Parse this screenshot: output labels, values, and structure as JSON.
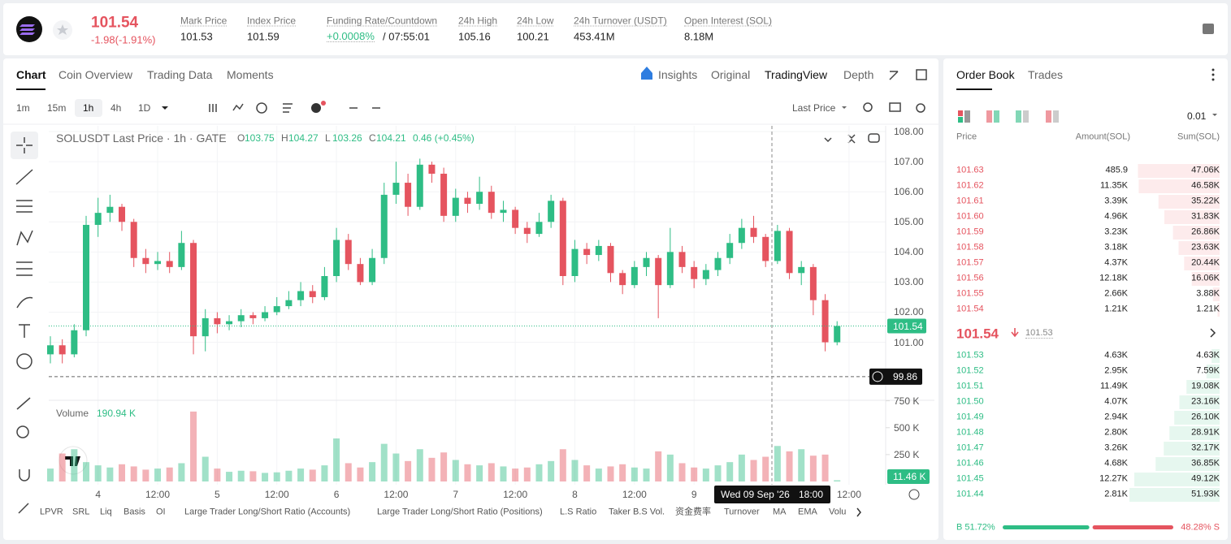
{
  "header": {
    "price": "101.54",
    "change": "-1.98(-1.91%)",
    "stats": [
      {
        "label": "Mark Price",
        "value": "101.53"
      },
      {
        "label": "Index Price",
        "value": "101.59"
      },
      {
        "label": "Funding Rate/Countdown",
        "value": "+0.0008%",
        "extra": "/ 07:55:01",
        "color": "#2ebd85"
      },
      {
        "label": "24h High",
        "value": "105.16"
      },
      {
        "label": "24h Low",
        "value": "100.21"
      },
      {
        "label": "24h Turnover (USDT)",
        "value": "453.41M"
      },
      {
        "label": "Open Interest (SOL)",
        "value": "8.18M"
      }
    ]
  },
  "chart_tabs": [
    "Chart",
    "Coin Overview",
    "Trading Data",
    "Moments"
  ],
  "view_tabs": [
    "Insights",
    "Original",
    "TradingView",
    "Depth"
  ],
  "intervals": [
    "1m",
    "15m",
    "1h",
    "4h",
    "1D"
  ],
  "price_source": "Last Price",
  "chart_data": {
    "type": "candlestick",
    "title": "SOLUSDT Last Price · 1h · GATE",
    "legend": [
      {
        "key": "O",
        "value": "103.75"
      },
      {
        "key": "H",
        "value": "104.27"
      },
      {
        "key": "L",
        "value": "103.26"
      },
      {
        "key": "C",
        "value": "104.21"
      },
      {
        "key": "",
        "value": "0.46 (+0.45%)"
      }
    ],
    "up_color": "#2ebd85",
    "down_color": "#e5545f",
    "categories": [
      null,
      null,
      null,
      null,
      "4",
      null,
      null,
      null,
      null,
      "12:00",
      null,
      null,
      null,
      null,
      "5",
      null,
      null,
      null,
      null,
      "12:00",
      null,
      null,
      null,
      null,
      "6",
      null,
      null,
      null,
      null,
      "12:00",
      null,
      null,
      null,
      null,
      "7",
      null,
      null,
      null,
      null,
      "12:00",
      null,
      null,
      null,
      null,
      "8",
      null,
      null,
      null,
      null,
      "12:00",
      null,
      null,
      null,
      null,
      "9",
      null,
      null,
      null,
      null,
      null,
      null,
      null,
      null,
      null,
      null,
      null,
      null,
      "12:00"
    ],
    "ohlc": [
      [
        100.6,
        101.2,
        100.3,
        100.9
      ],
      [
        100.9,
        101.1,
        100.3,
        100.6
      ],
      [
        100.6,
        101.6,
        100.5,
        101.4
      ],
      [
        101.4,
        105.2,
        101.2,
        104.9
      ],
      [
        104.9,
        105.8,
        104.5,
        105.3
      ],
      [
        105.3,
        105.9,
        105.0,
        105.5
      ],
      [
        105.5,
        105.6,
        104.7,
        105.0
      ],
      [
        105.0,
        105.1,
        103.5,
        103.8
      ],
      [
        103.8,
        104.1,
        103.3,
        103.6
      ],
      [
        103.6,
        104.0,
        103.4,
        103.7
      ],
      [
        103.7,
        104.0,
        103.3,
        103.5
      ],
      [
        103.5,
        104.7,
        103.4,
        104.3
      ],
      [
        104.3,
        104.4,
        100.6,
        101.2
      ],
      [
        101.2,
        102.1,
        100.7,
        101.8
      ],
      [
        101.8,
        102.0,
        101.3,
        101.6
      ],
      [
        101.6,
        101.9,
        101.4,
        101.7
      ],
      [
        101.7,
        102.1,
        101.5,
        101.9
      ],
      [
        101.9,
        102.0,
        101.6,
        101.8
      ],
      [
        101.8,
        102.2,
        101.7,
        102.0
      ],
      [
        102.0,
        102.5,
        101.9,
        102.2
      ],
      [
        102.2,
        102.7,
        102.1,
        102.4
      ],
      [
        102.4,
        103.0,
        102.2,
        102.7
      ],
      [
        102.7,
        102.9,
        102.3,
        102.5
      ],
      [
        102.5,
        103.5,
        102.4,
        103.2
      ],
      [
        103.2,
        104.8,
        103.0,
        104.4
      ],
      [
        104.4,
        104.6,
        103.4,
        103.6
      ],
      [
        103.6,
        103.8,
        102.9,
        103.0
      ],
      [
        103.0,
        104.1,
        102.9,
        103.8
      ],
      [
        103.8,
        106.3,
        103.6,
        105.9
      ],
      [
        105.9,
        107.0,
        105.6,
        106.3
      ],
      [
        106.3,
        106.6,
        105.2,
        105.5
      ],
      [
        105.5,
        107.1,
        105.4,
        106.9
      ],
      [
        106.9,
        107.0,
        106.3,
        106.6
      ],
      [
        106.6,
        106.8,
        105.0,
        105.2
      ],
      [
        105.2,
        106.1,
        105.0,
        105.8
      ],
      [
        105.8,
        106.0,
        105.3,
        105.6
      ],
      [
        105.6,
        106.5,
        105.4,
        106.0
      ],
      [
        106.0,
        106.2,
        105.1,
        105.3
      ],
      [
        105.3,
        105.7,
        105.0,
        105.4
      ],
      [
        105.4,
        105.5,
        104.6,
        104.8
      ],
      [
        104.8,
        105.0,
        104.3,
        104.6
      ],
      [
        104.6,
        105.3,
        104.5,
        105.0
      ],
      [
        105.0,
        105.9,
        104.8,
        105.7
      ],
      [
        105.7,
        105.8,
        102.9,
        103.2
      ],
      [
        103.2,
        104.4,
        103.0,
        104.1
      ],
      [
        104.1,
        104.3,
        103.6,
        103.9
      ],
      [
        103.9,
        104.4,
        103.7,
        104.2
      ],
      [
        104.2,
        104.3,
        103.0,
        103.3
      ],
      [
        103.3,
        103.4,
        102.6,
        102.9
      ],
      [
        102.9,
        103.7,
        102.8,
        103.5
      ],
      [
        103.5,
        104.0,
        103.2,
        103.8
      ],
      [
        103.8,
        103.9,
        101.8,
        102.9
      ],
      [
        102.9,
        104.8,
        102.8,
        104.0
      ],
      [
        104.0,
        104.2,
        103.3,
        103.5
      ],
      [
        103.5,
        103.7,
        102.8,
        103.1
      ],
      [
        103.1,
        103.6,
        102.9,
        103.4
      ],
      [
        103.4,
        104.0,
        103.2,
        103.8
      ],
      [
        103.8,
        104.6,
        103.6,
        104.3
      ],
      [
        104.3,
        105.1,
        104.1,
        104.8
      ],
      [
        104.8,
        105.2,
        104.3,
        104.5
      ],
      [
        104.5,
        104.6,
        103.5,
        103.7
      ],
      [
        103.7,
        104.9,
        103.6,
        104.7
      ],
      [
        104.7,
        104.8,
        103.1,
        103.3
      ],
      [
        103.3,
        103.7,
        102.9,
        103.5
      ],
      [
        103.5,
        103.6,
        101.9,
        102.4
      ],
      [
        102.4,
        102.6,
        100.7,
        101.0
      ],
      [
        101.0,
        101.7,
        100.9,
        101.54
      ],
      null
    ],
    "ylim": [
      99.1,
      108.19
    ],
    "yticks": [
      {
        "value": 101,
        "label": "101.00"
      },
      {
        "value": 102,
        "label": "102.00"
      },
      {
        "value": 103,
        "label": "103.00"
      },
      {
        "value": 104,
        "label": "104.00"
      },
      {
        "value": 105,
        "label": "105.00"
      },
      {
        "value": 106,
        "label": "106.00"
      },
      {
        "value": 107,
        "label": "107.00"
      },
      {
        "value": 108,
        "label": "108.00"
      }
    ],
    "grid": true,
    "last_price": 101.54,
    "price_line": 99.86,
    "crosshair": {
      "date": "Wed 09 Sep '26",
      "time": "18:00"
    },
    "volume": {
      "label": "Volume",
      "current": "190.94 K",
      "last_label": "11.46 K",
      "ylim": [
        0,
        800
      ],
      "yticks": [
        {
          "value": 250,
          "label": "250 K"
        },
        {
          "value": 500,
          "label": "500 K"
        },
        {
          "value": 750,
          "label": "750 K"
        }
      ],
      "values": [
        120,
        260,
        300,
        180,
        150,
        130,
        160,
        140,
        110,
        120,
        130,
        170,
        650,
        230,
        120,
        90,
        100,
        95,
        80,
        85,
        100,
        120,
        110,
        150,
        400,
        170,
        130,
        180,
        350,
        260,
        190,
        300,
        220,
        270,
        200,
        160,
        150,
        170,
        140,
        120,
        130,
        160,
        190,
        300,
        200,
        150,
        120,
        140,
        160,
        130,
        120,
        280,
        250,
        170,
        130,
        120,
        150,
        180,
        250,
        200,
        230,
        330,
        280,
        300,
        240,
        250,
        11.46,
        null
      ]
    }
  },
  "indicators": [
    "LPVR",
    "SRL",
    "Liq",
    "Basis",
    "OI",
    "Large Trader Long/Short Ratio (Accounts)",
    "Large Trader Long/Short Ratio (Positions)",
    "L.S Ratio",
    "Taker B.S Vol.",
    "资金费率",
    "Turnover",
    "MA",
    "EMA",
    "Volu"
  ],
  "order_book": {
    "tabs": [
      "Order Book",
      "Trades"
    ],
    "precision": "0.01",
    "columns": [
      "Price",
      "Amount(SOL)",
      "Sum(SOL)"
    ],
    "asks": [
      [
        "101.63",
        "485.9",
        "47.06K"
      ],
      [
        "101.62",
        "11.35K",
        "46.58K"
      ],
      [
        "101.61",
        "3.39K",
        "35.22K"
      ],
      [
        "101.60",
        "4.96K",
        "31.83K"
      ],
      [
        "101.59",
        "3.23K",
        "26.86K"
      ],
      [
        "101.58",
        "3.18K",
        "23.63K"
      ],
      [
        "101.57",
        "4.37K",
        "20.44K"
      ],
      [
        "101.56",
        "12.18K",
        "16.06K"
      ],
      [
        "101.55",
        "2.66K",
        "3.88K"
      ],
      [
        "101.54",
        "1.21K",
        "1.21K"
      ]
    ],
    "mid": {
      "price": "101.54",
      "index": "101.53"
    },
    "bids": [
      [
        "101.53",
        "4.63K",
        "4.63K"
      ],
      [
        "101.52",
        "2.95K",
        "7.59K"
      ],
      [
        "101.51",
        "11.49K",
        "19.08K"
      ],
      [
        "101.50",
        "4.07K",
        "23.16K"
      ],
      [
        "101.49",
        "2.94K",
        "26.10K"
      ],
      [
        "101.48",
        "2.80K",
        "28.91K"
      ],
      [
        "101.47",
        "3.26K",
        "32.17K"
      ],
      [
        "101.46",
        "4.68K",
        "36.85K"
      ],
      [
        "101.45",
        "12.27K",
        "49.12K"
      ],
      [
        "101.44",
        "2.81K",
        "51.93K"
      ]
    ],
    "ratio": {
      "buy": 51.72,
      "sell": 48.28,
      "buy_label": "B 51.72%",
      "sell_label": "48.28% S"
    }
  }
}
